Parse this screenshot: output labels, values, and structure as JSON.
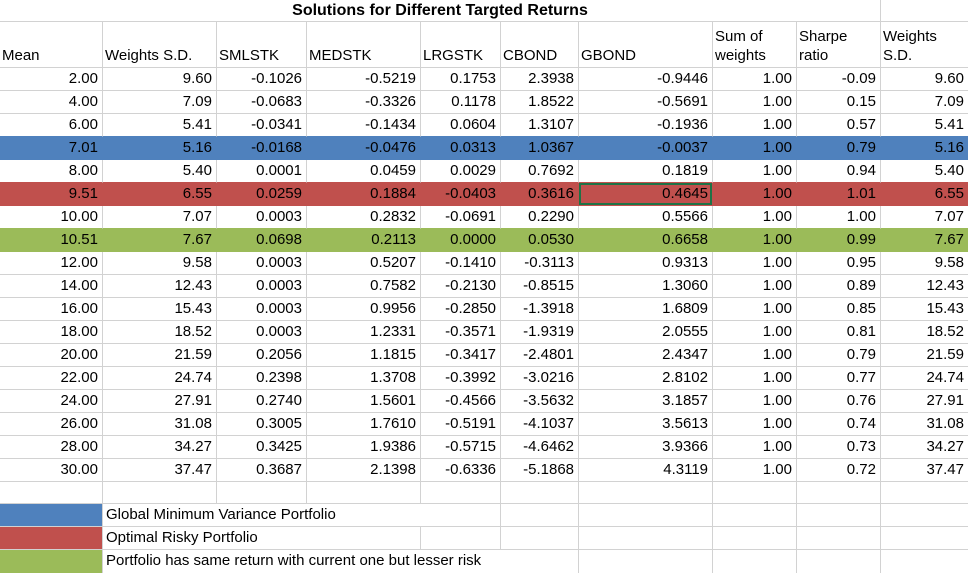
{
  "title": "Solutions for Different Targted Returns",
  "columns": [
    {
      "label": "Mean"
    },
    {
      "label": "Weights S.D."
    },
    {
      "label": "SMLSTK"
    },
    {
      "label": "MEDSTK"
    },
    {
      "label": "LRGSTK"
    },
    {
      "label": "CBOND"
    },
    {
      "label": "GBOND"
    },
    {
      "label": "Sum of\nweights"
    },
    {
      "label": "Sharpe\nratio"
    },
    {
      "label": "Weights\nS.D."
    }
  ],
  "rows": [
    {
      "highlight": null,
      "values": [
        "2.00",
        "9.60",
        "-0.1026",
        "-0.5219",
        "0.1753",
        "2.3938",
        "-0.9446",
        "1.00",
        "-0.09",
        "9.60"
      ]
    },
    {
      "highlight": null,
      "values": [
        "4.00",
        "7.09",
        "-0.0683",
        "-0.3326",
        "0.1178",
        "1.8522",
        "-0.5691",
        "1.00",
        "0.15",
        "7.09"
      ]
    },
    {
      "highlight": null,
      "values": [
        "6.00",
        "5.41",
        "-0.0341",
        "-0.1434",
        "0.0604",
        "1.3107",
        "-0.1936",
        "1.00",
        "0.57",
        "5.41"
      ]
    },
    {
      "highlight": "blue",
      "values": [
        "7.01",
        "5.16",
        "-0.0168",
        "-0.0476",
        "0.0313",
        "1.0367",
        "-0.0037",
        "1.00",
        "0.79",
        "5.16"
      ]
    },
    {
      "highlight": null,
      "values": [
        "8.00",
        "5.40",
        "0.0001",
        "0.0459",
        "0.0029",
        "0.7692",
        "0.1819",
        "1.00",
        "0.94",
        "5.40"
      ]
    },
    {
      "highlight": "red",
      "values": [
        "9.51",
        "6.55",
        "0.0259",
        "0.1884",
        "-0.0403",
        "0.3616",
        "0.4645",
        "1.00",
        "1.01",
        "6.55"
      ]
    },
    {
      "highlight": null,
      "values": [
        "10.00",
        "7.07",
        "0.0003",
        "0.2832",
        "-0.0691",
        "0.2290",
        "0.5566",
        "1.00",
        "1.00",
        "7.07"
      ]
    },
    {
      "highlight": "green",
      "values": [
        "10.51",
        "7.67",
        "0.0698",
        "0.2113",
        "0.0000",
        "0.0530",
        "0.6658",
        "1.00",
        "0.99",
        "7.67"
      ]
    },
    {
      "highlight": null,
      "values": [
        "12.00",
        "9.58",
        "0.0003",
        "0.5207",
        "-0.1410",
        "-0.3113",
        "0.9313",
        "1.00",
        "0.95",
        "9.58"
      ]
    },
    {
      "highlight": null,
      "values": [
        "14.00",
        "12.43",
        "0.0003",
        "0.7582",
        "-0.2130",
        "-0.8515",
        "1.3060",
        "1.00",
        "0.89",
        "12.43"
      ]
    },
    {
      "highlight": null,
      "values": [
        "16.00",
        "15.43",
        "0.0003",
        "0.9956",
        "-0.2850",
        "-1.3918",
        "1.6809",
        "1.00",
        "0.85",
        "15.43"
      ]
    },
    {
      "highlight": null,
      "values": [
        "18.00",
        "18.52",
        "0.0003",
        "1.2331",
        "-0.3571",
        "-1.9319",
        "2.0555",
        "1.00",
        "0.81",
        "18.52"
      ]
    },
    {
      "highlight": null,
      "values": [
        "20.00",
        "21.59",
        "0.2056",
        "1.1815",
        "-0.3417",
        "-2.4801",
        "2.4347",
        "1.00",
        "0.79",
        "21.59"
      ]
    },
    {
      "highlight": null,
      "values": [
        "22.00",
        "24.74",
        "0.2398",
        "1.3708",
        "-0.3992",
        "-3.0216",
        "2.8102",
        "1.00",
        "0.77",
        "24.74"
      ]
    },
    {
      "highlight": null,
      "values": [
        "24.00",
        "27.91",
        "0.2740",
        "1.5601",
        "-0.4566",
        "-3.5632",
        "3.1857",
        "1.00",
        "0.76",
        "27.91"
      ]
    },
    {
      "highlight": null,
      "values": [
        "26.00",
        "31.08",
        "0.3005",
        "1.7610",
        "-0.5191",
        "-4.1037",
        "3.5613",
        "1.00",
        "0.74",
        "31.08"
      ]
    },
    {
      "highlight": null,
      "values": [
        "28.00",
        "34.27",
        "0.3425",
        "1.9386",
        "-0.5715",
        "-4.6462",
        "3.9366",
        "1.00",
        "0.73",
        "34.27"
      ]
    },
    {
      "highlight": null,
      "values": [
        "30.00",
        "37.47",
        "0.3687",
        "2.1398",
        "-0.6336",
        "-5.1868",
        "4.3119",
        "1.00",
        "0.72",
        "37.47"
      ]
    }
  ],
  "selected_cell": {
    "row": 5,
    "col": 6,
    "value": "0.4645"
  },
  "legend": [
    {
      "color": "blue",
      "label": "Global Minimum Variance Portfolio"
    },
    {
      "color": "red",
      "label": "Optimal Risky Portfolio"
    },
    {
      "color": "green",
      "label": "Portfolio has same return with current one but lesser risk"
    }
  ],
  "colors": {
    "blue": "#4f81bd",
    "red": "#c0504d",
    "green": "#9bbb59",
    "selection": "#1f7246",
    "gridline": "#d2d2d2"
  }
}
